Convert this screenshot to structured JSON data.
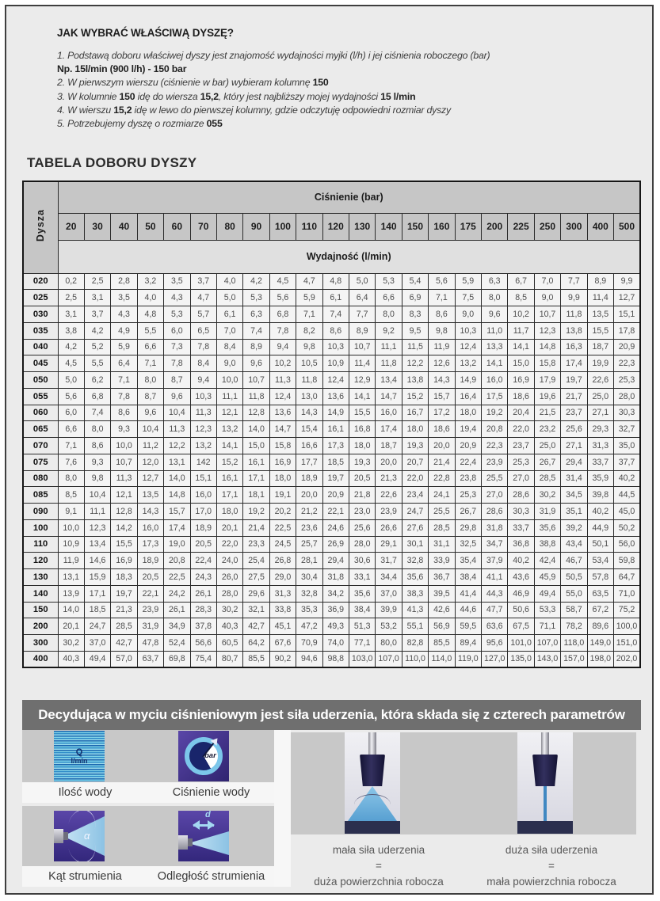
{
  "page": {
    "heading": "JAK WYBRAĆ WŁAŚCIWĄ DYSZĘ?",
    "table_title": "TABELA DOBORU DYSZY"
  },
  "instructions": [
    {
      "segments": [
        {
          "t": "1. Podstawą doboru właściwej dyszy jest znajomość wydajności myjki (l/h) i jej ciśnienia roboczego (bar)",
          "b": false
        }
      ]
    },
    {
      "segments": [
        {
          "t": "Np. 15l/min (900 l/h) - 150 bar",
          "b": true
        }
      ]
    },
    {
      "segments": [
        {
          "t": "2. W pierwszym wierszu (ciśnienie w bar) wybieram kolumnę ",
          "b": false
        },
        {
          "t": "150",
          "b": true
        }
      ]
    },
    {
      "segments": [
        {
          "t": "3. W kolumnie ",
          "b": false
        },
        {
          "t": "150",
          "b": true
        },
        {
          "t": " idę do wiersza ",
          "b": false
        },
        {
          "t": "15,2",
          "b": true
        },
        {
          "t": ", który jest najbliższy mojej wydajności ",
          "b": false
        },
        {
          "t": "15 l/min",
          "b": true
        }
      ]
    },
    {
      "segments": [
        {
          "t": "4. W wierszu ",
          "b": false
        },
        {
          "t": "15,2",
          "b": true
        },
        {
          "t": " idę w lewo do pierwszej kolumny, gdzie odczytuję odpowiedni rozmiar dyszy",
          "b": false
        }
      ]
    },
    {
      "segments": [
        {
          "t": "5. Potrzebujemy dyszę o rozmiarze ",
          "b": false
        },
        {
          "t": "055",
          "b": true
        }
      ]
    }
  ],
  "table": {
    "corner_label": "Dysza",
    "pressure_header": "Ciśnienie (bar)",
    "flow_header": "Wydajność (l/min)",
    "pressures": [
      "20",
      "30",
      "40",
      "50",
      "60",
      "70",
      "80",
      "90",
      "100",
      "110",
      "120",
      "130",
      "140",
      "150",
      "160",
      "175",
      "200",
      "225",
      "250",
      "300",
      "400",
      "500"
    ],
    "rows": [
      {
        "size": "020",
        "values": [
          "0,2",
          "2,5",
          "2,8",
          "3,2",
          "3,5",
          "3,7",
          "4,0",
          "4,2",
          "4,5",
          "4,7",
          "4,8",
          "5,0",
          "5,3",
          "5,4",
          "5,6",
          "5,9",
          "6,3",
          "6,7",
          "7,0",
          "7,7",
          "8,9",
          "9,9"
        ]
      },
      {
        "size": "025",
        "values": [
          "2,5",
          "3,1",
          "3,5",
          "4,0",
          "4,3",
          "4,7",
          "5,0",
          "5,3",
          "5,6",
          "5,9",
          "6,1",
          "6,4",
          "6,6",
          "6,9",
          "7,1",
          "7,5",
          "8,0",
          "8,5",
          "9,0",
          "9,9",
          "11,4",
          "12,7"
        ]
      },
      {
        "size": "030",
        "values": [
          "3,1",
          "3,7",
          "4,3",
          "4,8",
          "5,3",
          "5,7",
          "6,1",
          "6,3",
          "6,8",
          "7,1",
          "7,4",
          "7,7",
          "8,0",
          "8,3",
          "8,6",
          "9,0",
          "9,6",
          "10,2",
          "10,7",
          "11,8",
          "13,5",
          "15,1"
        ]
      },
      {
        "size": "035",
        "values": [
          "3,8",
          "4,2",
          "4,9",
          "5,5",
          "6,0",
          "6,5",
          "7,0",
          "7,4",
          "7,8",
          "8,2",
          "8,6",
          "8,9",
          "9,2",
          "9,5",
          "9,8",
          "10,3",
          "11,0",
          "11,7",
          "12,3",
          "13,8",
          "15,5",
          "17,8"
        ]
      },
      {
        "size": "040",
        "values": [
          "4,2",
          "5,2",
          "5,9",
          "6,6",
          "7,3",
          "7,8",
          "8,4",
          "8,9",
          "9,4",
          "9,8",
          "10,3",
          "10,7",
          "11,1",
          "11,5",
          "11,9",
          "12,4",
          "13,3",
          "14,1",
          "14,8",
          "16,3",
          "18,7",
          "20,9"
        ]
      },
      {
        "size": "045",
        "values": [
          "4,5",
          "5,5",
          "6,4",
          "7,1",
          "7,8",
          "8,4",
          "9,0",
          "9,6",
          "10,2",
          "10,5",
          "10,9",
          "11,4",
          "11,8",
          "12,2",
          "12,6",
          "13,2",
          "14,1",
          "15,0",
          "15,8",
          "17,4",
          "19,9",
          "22,3"
        ]
      },
      {
        "size": "050",
        "values": [
          "5,0",
          "6,2",
          "7,1",
          "8,0",
          "8,7",
          "9,4",
          "10,0",
          "10,7",
          "11,3",
          "11,8",
          "12,4",
          "12,9",
          "13,4",
          "13,8",
          "14,3",
          "14,9",
          "16,0",
          "16,9",
          "17,9",
          "19,7",
          "22,6",
          "25,3"
        ]
      },
      {
        "size": "055",
        "values": [
          "5,6",
          "6,8",
          "7,8",
          "8,7",
          "9,6",
          "10,3",
          "11,1",
          "11,8",
          "12,4",
          "13,0",
          "13,6",
          "14,1",
          "14,7",
          "15,2",
          "15,7",
          "16,4",
          "17,5",
          "18,6",
          "19,6",
          "21,7",
          "25,0",
          "28,0"
        ]
      },
      {
        "size": "060",
        "values": [
          "6,0",
          "7,4",
          "8,6",
          "9,6",
          "10,4",
          "11,3",
          "12,1",
          "12,8",
          "13,6",
          "14,3",
          "14,9",
          "15,5",
          "16,0",
          "16,7",
          "17,2",
          "18,0",
          "19,2",
          "20,4",
          "21,5",
          "23,7",
          "27,1",
          "30,3"
        ]
      },
      {
        "size": "065",
        "values": [
          "6,6",
          "8,0",
          "9,3",
          "10,4",
          "11,3",
          "12,3",
          "13,2",
          "14,0",
          "14,7",
          "15,4",
          "16,1",
          "16,8",
          "17,4",
          "18,0",
          "18,6",
          "19,4",
          "20,8",
          "22,0",
          "23,2",
          "25,6",
          "29,3",
          "32,7"
        ]
      },
      {
        "size": "070",
        "values": [
          "7,1",
          "8,6",
          "10,0",
          "11,2",
          "12,2",
          "13,2",
          "14,1",
          "15,0",
          "15,8",
          "16,6",
          "17,3",
          "18,0",
          "18,7",
          "19,3",
          "20,0",
          "20,9",
          "22,3",
          "23,7",
          "25,0",
          "27,1",
          "31,3",
          "35,0"
        ]
      },
      {
        "size": "075",
        "values": [
          "7,6",
          "9,3",
          "10,7",
          "12,0",
          "13,1",
          "142",
          "15,2",
          "16,1",
          "16,9",
          "17,7",
          "18,5",
          "19,3",
          "20,0",
          "20,7",
          "21,4",
          "22,4",
          "23,9",
          "25,3",
          "26,7",
          "29,4",
          "33,7",
          "37,7"
        ]
      },
      {
        "size": "080",
        "values": [
          "8,0",
          "9,8",
          "11,3",
          "12,7",
          "14,0",
          "15,1",
          "16,1",
          "17,1",
          "18,0",
          "18,9",
          "19,7",
          "20,5",
          "21,3",
          "22,0",
          "22,8",
          "23,8",
          "25,5",
          "27,0",
          "28,5",
          "31,4",
          "35,9",
          "40,2"
        ]
      },
      {
        "size": "085",
        "values": [
          "8,5",
          "10,4",
          "12,1",
          "13,5",
          "14,8",
          "16,0",
          "17,1",
          "18,1",
          "19,1",
          "20,0",
          "20,9",
          "21,8",
          "22,6",
          "23,4",
          "24,1",
          "25,3",
          "27,0",
          "28,6",
          "30,2",
          "34,5",
          "39,8",
          "44,5"
        ]
      },
      {
        "size": "090",
        "values": [
          "9,1",
          "11,1",
          "12,8",
          "14,3",
          "15,7",
          "17,0",
          "18,0",
          "19,2",
          "20,2",
          "21,2",
          "22,1",
          "23,0",
          "23,9",
          "24,7",
          "25,5",
          "26,7",
          "28,6",
          "30,3",
          "31,9",
          "35,1",
          "40,2",
          "45,0"
        ]
      },
      {
        "size": "100",
        "values": [
          "10,0",
          "12,3",
          "14,2",
          "16,0",
          "17,4",
          "18,9",
          "20,1",
          "21,4",
          "22,5",
          "23,6",
          "24,6",
          "25,6",
          "26,6",
          "27,6",
          "28,5",
          "29,8",
          "31,8",
          "33,7",
          "35,6",
          "39,2",
          "44,9",
          "50,2"
        ]
      },
      {
        "size": "110",
        "values": [
          "10,9",
          "13,4",
          "15,5",
          "17,3",
          "19,0",
          "20,5",
          "22,0",
          "23,3",
          "24,5",
          "25,7",
          "26,9",
          "28,0",
          "29,1",
          "30,1",
          "31,1",
          "32,5",
          "34,7",
          "36,8",
          "38,8",
          "43,4",
          "50,1",
          "56,0"
        ]
      },
      {
        "size": "120",
        "values": [
          "11,9",
          "14,6",
          "16,9",
          "18,9",
          "20,8",
          "22,4",
          "24,0",
          "25,4",
          "26,8",
          "28,1",
          "29,4",
          "30,6",
          "31,7",
          "32,8",
          "33,9",
          "35,4",
          "37,9",
          "40,2",
          "42,4",
          "46,7",
          "53,4",
          "59,8"
        ]
      },
      {
        "size": "130",
        "values": [
          "13,1",
          "15,9",
          "18,3",
          "20,5",
          "22,5",
          "24,3",
          "26,0",
          "27,5",
          "29,0",
          "30,4",
          "31,8",
          "33,1",
          "34,4",
          "35,6",
          "36,7",
          "38,4",
          "41,1",
          "43,6",
          "45,9",
          "50,5",
          "57,8",
          "64,7"
        ]
      },
      {
        "size": "140",
        "values": [
          "13,9",
          "17,1",
          "19,7",
          "22,1",
          "24,2",
          "26,1",
          "28,0",
          "29,6",
          "31,3",
          "32,8",
          "34,2",
          "35,6",
          "37,0",
          "38,3",
          "39,5",
          "41,4",
          "44,3",
          "46,9",
          "49,4",
          "55,0",
          "63,5",
          "71,0"
        ]
      },
      {
        "size": "150",
        "values": [
          "14,0",
          "18,5",
          "21,3",
          "23,9",
          "26,1",
          "28,3",
          "30,2",
          "32,1",
          "33,8",
          "35,3",
          "36,9",
          "38,4",
          "39,9",
          "41,3",
          "42,6",
          "44,6",
          "47,7",
          "50,6",
          "53,3",
          "58,7",
          "67,2",
          "75,2"
        ]
      },
      {
        "size": "200",
        "values": [
          "20,1",
          "24,7",
          "28,5",
          "31,9",
          "34,9",
          "37,8",
          "40,3",
          "42,7",
          "45,1",
          "47,2",
          "49,3",
          "51,3",
          "53,2",
          "55,1",
          "56,9",
          "59,5",
          "63,6",
          "67,5",
          "71,1",
          "78,2",
          "89,6",
          "100,0"
        ]
      },
      {
        "size": "300",
        "values": [
          "30,2",
          "37,0",
          "42,7",
          "47,8",
          "52,4",
          "56,6",
          "60,5",
          "64,2",
          "67,6",
          "70,9",
          "74,0",
          "77,1",
          "80,0",
          "82,8",
          "85,5",
          "89,4",
          "95,6",
          "101,0",
          "107,0",
          "118,0",
          "149,0",
          "151,0"
        ]
      },
      {
        "size": "400",
        "values": [
          "40,3",
          "49,4",
          "57,0",
          "63,7",
          "69,8",
          "75,4",
          "80,7",
          "85,5",
          "90,2",
          "94,6",
          "98,8",
          "103,0",
          "107,0",
          "110,0",
          "114,0",
          "119,0",
          "127,0",
          "135,0",
          "143,0",
          "157,0",
          "198,0",
          "202,0"
        ]
      }
    ]
  },
  "banner": {
    "text": "Decydująca w myciu ciśnieniowym jest siła uderzenia, która składa się z czterech parametrów"
  },
  "parameters": [
    {
      "caption": "Ilość wody",
      "icon": "water-quantity-icon",
      "label_line1": "Q",
      "label_line2": "l/min"
    },
    {
      "caption": "Ciśnienie wody",
      "icon": "pressure-gauge-icon",
      "label": "bar"
    },
    {
      "caption": "Kąt strumienia",
      "icon": "spray-angle-icon",
      "label": "α"
    },
    {
      "caption": "Odległość strumienia",
      "icon": "spray-distance-icon",
      "label": "d"
    }
  ],
  "results": [
    {
      "photo": "wide-fan-spray",
      "lines": [
        "mała siła uderzenia",
        "=",
        "duża powierzchnia robocza"
      ]
    },
    {
      "photo": "narrow-jet-spray",
      "lines": [
        "duża siła uderzenia",
        "=",
        "mała powierzchnia robocza"
      ]
    }
  ]
}
